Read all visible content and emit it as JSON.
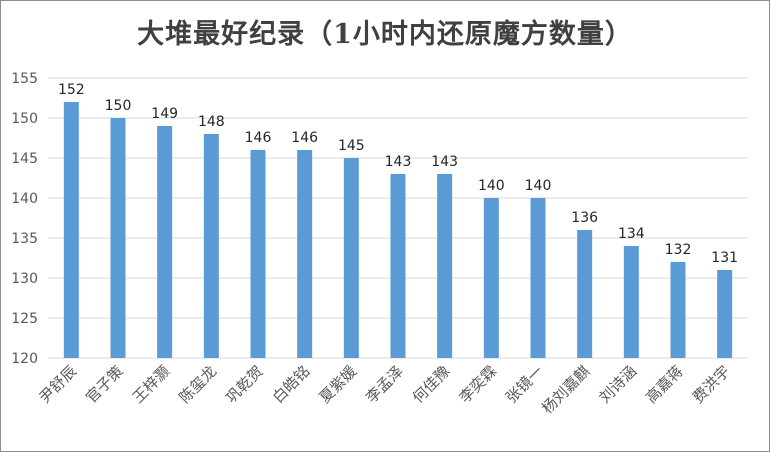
{
  "chart_data": {
    "type": "bar",
    "title": "大堆最好纪录（1小时内还原魔方数量）",
    "categories": [
      "尹舒辰",
      "官子策",
      "王梓灏",
      "陈玺龙",
      "巩乾贺",
      "白皓铭",
      "夏紫媛",
      "李孟泽",
      "何佳豫",
      "李奕霖",
      "张镜一",
      "杨刘嘉麒",
      "刘诗涵",
      "高嘉蒋",
      "费洪宇"
    ],
    "values": [
      152,
      150,
      149,
      148,
      146,
      146,
      145,
      143,
      143,
      140,
      140,
      136,
      134,
      132,
      131
    ],
    "ylim": [
      120,
      155
    ],
    "yticks": [
      120,
      125,
      130,
      135,
      140,
      145,
      150,
      155
    ],
    "grid": true,
    "colors": {
      "bar": "#5b9bd5",
      "grid": "#d9d9d9"
    }
  }
}
